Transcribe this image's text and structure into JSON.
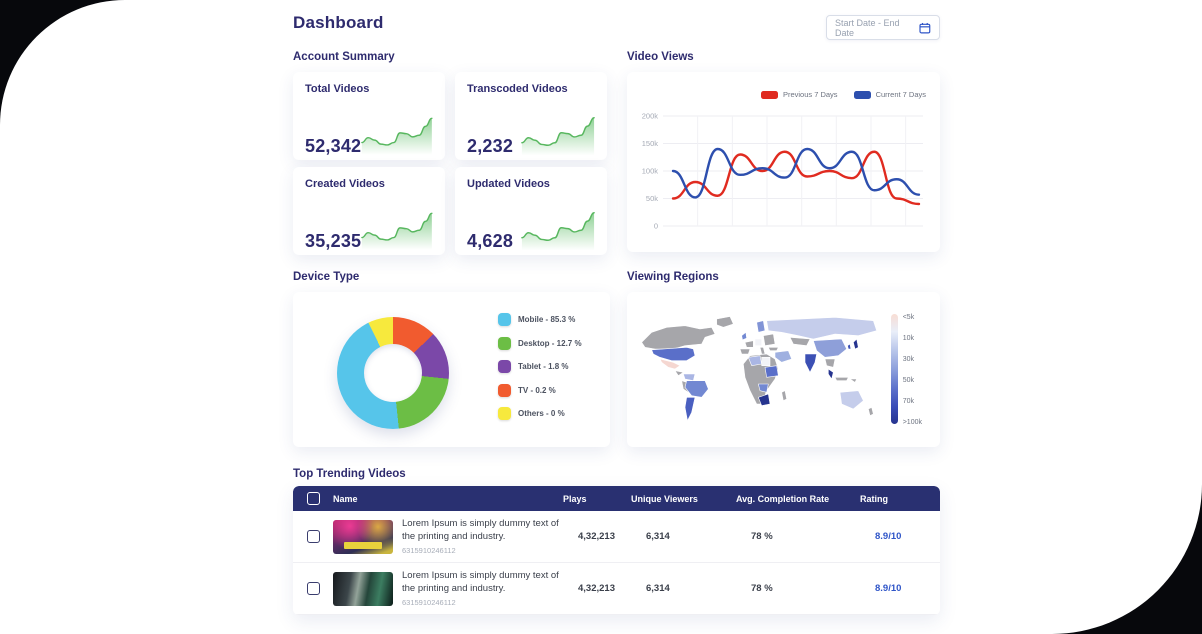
{
  "page": {
    "title": "Dashboard"
  },
  "date_filter": {
    "label": "Start Date - End Date"
  },
  "sections": {
    "account_summary": "Account Summary",
    "video_views": "Video Views",
    "device_type": "Device Type",
    "viewing_regions": "Viewing Regions",
    "trending": "Top Trending Videos"
  },
  "account_summary": {
    "cards": [
      {
        "title": "Total Videos",
        "value": "52,342"
      },
      {
        "title": "Transcoded Videos",
        "value": "2,232"
      },
      {
        "title": "Created Videos",
        "value": "35,235"
      },
      {
        "title": "Updated Videos",
        "value": "4,628"
      }
    ],
    "sparkline_values": [
      14,
      20,
      17,
      12,
      11,
      14,
      26,
      25,
      21,
      23,
      34,
      44
    ],
    "sparkline_color": "#58b75f"
  },
  "chart_data": [
    {
      "type": "line",
      "title": "Video Views",
      "x": [
        1,
        2,
        3,
        4,
        5,
        6,
        7,
        8,
        9,
        10,
        11,
        12
      ],
      "series": [
        {
          "name": "Previous 7 Days",
          "color": "#e02b20",
          "values": [
            50000,
            80000,
            55000,
            130000,
            100000,
            135000,
            90000,
            100000,
            87000,
            135000,
            50000,
            40000
          ]
        },
        {
          "name": "Current 7 Days",
          "color": "#2d4fae",
          "values": [
            100000,
            52000,
            140000,
            93000,
            105000,
            88000,
            140000,
            105000,
            135000,
            65000,
            85000,
            57000
          ]
        }
      ],
      "ylim": [
        0,
        200000
      ],
      "yticks": [
        "0",
        "50k",
        "100k",
        "150k",
        "200k"
      ],
      "grid": true,
      "legend_position": "top-right",
      "xlabel": "",
      "ylabel": ""
    },
    {
      "type": "pie",
      "title": "Device Type",
      "labels": [
        "Mobile",
        "Desktop",
        "Tablet",
        "TV",
        "Others"
      ],
      "values": [
        85.3,
        12.7,
        1.8,
        0.2,
        0
      ],
      "display": [
        "Mobile - 85.3 %",
        "Desktop - 12.7 %",
        "Tablet - 1.8 %",
        "TV - 0.2 %",
        "Others - 0 %"
      ],
      "colors": [
        "#56c5ea",
        "#6cbe45",
        "#7b48a8",
        "#f15b2f",
        "#f7e93d"
      ],
      "donut_visual": [
        {
          "color": "#f15b2f",
          "deg": 46
        },
        {
          "color": "#7b48a8",
          "deg": 50
        },
        {
          "color": "#6cbe45",
          "deg": 78
        },
        {
          "color": "#56c5ea",
          "deg": 160
        },
        {
          "color": "#f7e93d",
          "deg": 26
        }
      ]
    },
    {
      "type": "heatmap",
      "title": "Viewing Regions",
      "scale_labels": [
        "<5k",
        "10k",
        "30k",
        "50k",
        "70k",
        ">100k"
      ],
      "scale_colors": [
        "#f8ddd4",
        "#b9c6ea",
        "#8da0dc",
        "#5f74cc",
        "#3a4db8",
        "#26348f"
      ]
    }
  ],
  "trending": {
    "columns": [
      "Name",
      "Plays",
      "Unique Viewers",
      "Avg. Completion Rate",
      "Rating"
    ],
    "rows": [
      {
        "name": "Lorem Ipsum is simply dummy text of the printing and industry.",
        "video_id": "6315910246112",
        "plays": "4,32,213",
        "unique_viewers": "6,314",
        "avg_completion_rate": "78 %",
        "rating": "8.9/10"
      },
      {
        "name": "Lorem Ipsum is simply dummy text of the printing and industry.",
        "video_id": "6315910246112",
        "plays": "4,32,213",
        "unique_viewers": "6,314",
        "avg_completion_rate": "78 %",
        "rating": "8.9/10"
      }
    ]
  }
}
